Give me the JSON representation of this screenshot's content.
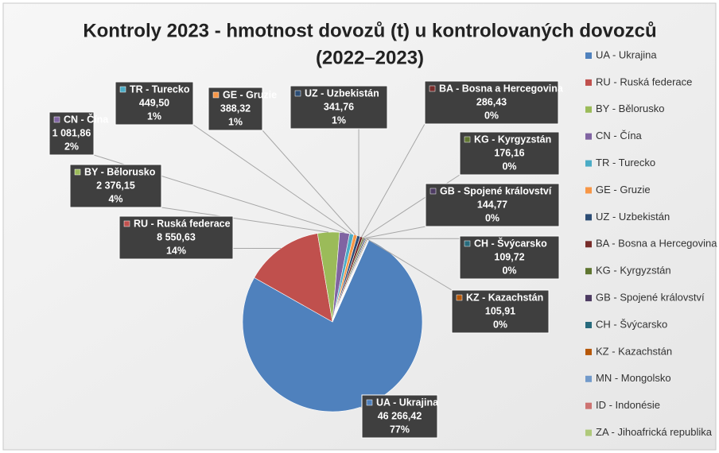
{
  "chart_data": {
    "type": "pie",
    "title": [
      "Kontroly 2023 - hmotnost dovozů (t) u kontrolovaných dovozců",
      "(2022–2023)"
    ],
    "categories": [
      "UA - Ukrajina",
      "RU - Ruská federace",
      "BY - Bělorusko",
      "CN - Čína",
      "TR - Turecko",
      "GE - Gruzie",
      "UZ - Uzbekistán",
      "BA - Bosna a Hercegovina",
      "KG - Kyrgyzstán",
      "GB - Spojené království",
      "CH - Švýcarsko",
      "KZ - Kazachstán",
      "MN - Mongolsko",
      "ID - Indonésie",
      "ZA - Jihoafrická republika"
    ],
    "values": [
      46266.42,
      8550.63,
      2376.15,
      1081.86,
      449.5,
      388.32,
      341.76,
      286.43,
      176.16,
      144.77,
      109.72,
      105.91,
      90,
      60,
      30
    ],
    "value_labels": [
      "46 266,42",
      "8 550,63",
      "2 376,15",
      "1 081,86",
      "449,50",
      "388,32",
      "341,76",
      "286,43",
      "176,16",
      "144,77",
      "109,72",
      "105,91",
      null,
      null,
      null
    ],
    "percent_labels": [
      "77%",
      "14%",
      "4%",
      "2%",
      "1%",
      "1%",
      "1%",
      "0%",
      "0%",
      "0%",
      "0%",
      "0%",
      null,
      null,
      null
    ],
    "colors": [
      "#4f81bd",
      "#c0504d",
      "#9bbb59",
      "#8064a2",
      "#4bacc6",
      "#f79646",
      "#2c4d75",
      "#772c2a",
      "#5f7530",
      "#4d3b62",
      "#276a7c",
      "#b65708",
      "#729aca",
      "#cd7371",
      "#afc97a"
    ],
    "legend": "right"
  }
}
